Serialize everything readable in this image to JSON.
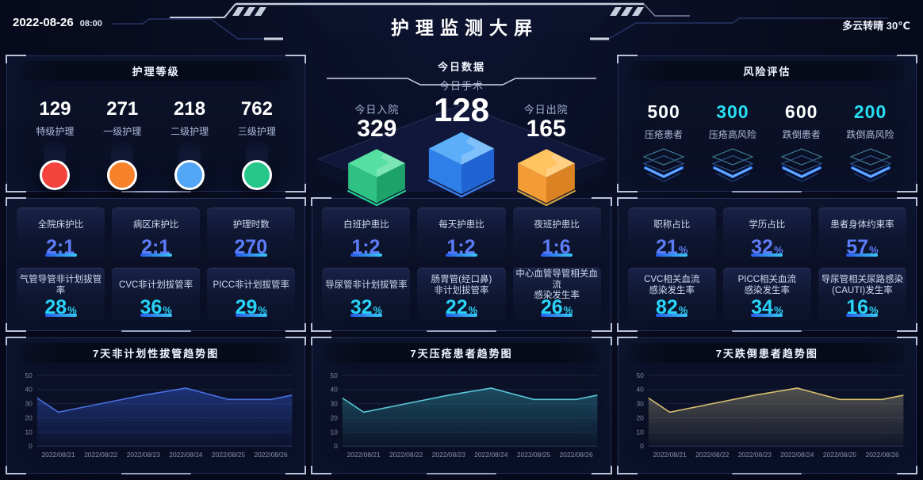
{
  "header": {
    "date": "2022-08-26",
    "time": "08:00",
    "title": "护理监测大屏",
    "weather": "多云转晴 30℃"
  },
  "colors": {
    "value_blue": "#5d7df8",
    "value_cyan": "#29d3f7",
    "risk_white": "#ffffff",
    "risk_cyan": "#27dff2"
  },
  "nursing_level": {
    "title": "护理等级",
    "items": [
      {
        "value": "129",
        "label": "特级护理",
        "color": "#f4433c"
      },
      {
        "value": "271",
        "label": "一级护理",
        "color": "#f6832b"
      },
      {
        "value": "218",
        "label": "二级护理",
        "color": "#53a6f6"
      },
      {
        "value": "762",
        "label": "三级护理",
        "color": "#27c78c"
      }
    ]
  },
  "today_data": {
    "title": "今日数据",
    "items": [
      {
        "label": "今日入院",
        "value": "329",
        "box_color": "green"
      },
      {
        "label": "今日手术",
        "value": "128",
        "box_color": "blue"
      },
      {
        "label": "今日出院",
        "value": "165",
        "box_color": "orange"
      }
    ]
  },
  "risk_assessment": {
    "title": "风险评估",
    "items": [
      {
        "value": "500",
        "label": "压疮患者",
        "value_color": "#ffffff"
      },
      {
        "value": "300",
        "label": "压疮高风险",
        "value_color": "#27dff2"
      },
      {
        "value": "600",
        "label": "跌倒患者",
        "value_color": "#ffffff"
      },
      {
        "value": "200",
        "label": "跌倒高风险",
        "value_color": "#27dff2"
      }
    ]
  },
  "stat_panels": [
    {
      "cards": [
        {
          "label": "全院床护比",
          "label2": "",
          "value": "2:1",
          "unit": "",
          "tone": "blue"
        },
        {
          "label": "病区床护比",
          "label2": "",
          "value": "2:1",
          "unit": "",
          "tone": "blue"
        },
        {
          "label": "护理时数",
          "label2": "",
          "value": "270",
          "unit": "",
          "tone": "blue"
        },
        {
          "label": "气管导管非计划拔管率",
          "label2": "",
          "value": "28",
          "unit": "%",
          "tone": "cyan"
        },
        {
          "label": "CVC非计划拔管率",
          "label2": "",
          "value": "36",
          "unit": "%",
          "tone": "cyan"
        },
        {
          "label": "PICC非计划拔管率",
          "label2": "",
          "value": "29",
          "unit": "%",
          "tone": "cyan"
        }
      ]
    },
    {
      "cards": [
        {
          "label": "白班护患比",
          "label2": "",
          "value": "1:2",
          "unit": "",
          "tone": "blue"
        },
        {
          "label": "每天护患比",
          "label2": "",
          "value": "1:2",
          "unit": "",
          "tone": "blue"
        },
        {
          "label": "夜班护患比",
          "label2": "",
          "value": "1:6",
          "unit": "",
          "tone": "blue"
        },
        {
          "label": "导尿管非计划拔管率",
          "label2": "",
          "value": "32",
          "unit": "%",
          "tone": "cyan"
        },
        {
          "label": "肠胃管(经口鼻)",
          "label2": "非计划拔管率",
          "value": "22",
          "unit": "%",
          "tone": "cyan"
        },
        {
          "label": "中心血管导管相关血流",
          "label2": "感染发生率",
          "value": "26",
          "unit": "%",
          "tone": "cyan"
        }
      ]
    },
    {
      "cards": [
        {
          "label": "职称占比",
          "label2": "",
          "value": "21",
          "unit": "%",
          "tone": "blue"
        },
        {
          "label": "学历占比",
          "label2": "",
          "value": "32",
          "unit": "%",
          "tone": "blue"
        },
        {
          "label": "患者身体约束率",
          "label2": "",
          "value": "57",
          "unit": "%",
          "tone": "blue"
        },
        {
          "label": "CVC相关血流",
          "label2": "感染发生率",
          "value": "82",
          "unit": "%",
          "tone": "cyan"
        },
        {
          "label": "PICC相关血流",
          "label2": "感染发生率",
          "value": "34",
          "unit": "%",
          "tone": "cyan"
        },
        {
          "label": "导尿管相关尿路感染",
          "label2": "(CAUTI)发生率",
          "value": "16",
          "unit": "%",
          "tone": "cyan"
        }
      ]
    }
  ],
  "chart_data": [
    {
      "type": "area",
      "title": "7天非计划性拔管趋势图",
      "x": [
        "2022/08/21",
        "2022/08/22",
        "2022/08/23",
        "2022/08/24",
        "2022/08/25",
        "2022/08/26"
      ],
      "values": [
        24,
        30,
        36,
        41,
        33,
        33
      ],
      "edge_values": [
        34,
        36
      ],
      "ylim": [
        0,
        50
      ],
      "yticks": [
        0,
        10,
        20,
        30,
        40,
        50
      ],
      "xlabel": "",
      "ylabel": "",
      "grid": true,
      "legend": "none",
      "line_color": "#4a6fe0",
      "area_color": "#2b4fb8"
    },
    {
      "type": "area",
      "title": "7天压疮患者趋势图",
      "x": [
        "2022/08/21",
        "2022/08/22",
        "2022/08/23",
        "2022/08/24",
        "2022/08/25",
        "2022/08/26"
      ],
      "values": [
        24,
        30,
        36,
        41,
        33,
        33
      ],
      "edge_values": [
        34,
        36
      ],
      "ylim": [
        0,
        50
      ],
      "yticks": [
        0,
        10,
        20,
        30,
        40,
        50
      ],
      "xlabel": "",
      "ylabel": "",
      "grid": true,
      "legend": "none",
      "line_color": "#58c6d6",
      "area_color": "#2a7d8f"
    },
    {
      "type": "area",
      "title": "7天跌倒患者趋势图",
      "x": [
        "2022/08/21",
        "2022/08/22",
        "2022/08/23",
        "2022/08/24",
        "2022/08/25",
        "2022/08/26"
      ],
      "values": [
        24,
        30,
        36,
        41,
        33,
        33
      ],
      "edge_values": [
        34,
        36
      ],
      "ylim": [
        0,
        50
      ],
      "yticks": [
        0,
        10,
        20,
        30,
        40,
        50
      ],
      "xlabel": "",
      "ylabel": "",
      "grid": true,
      "legend": "none",
      "line_color": "#d6bf6e",
      "area_color": "#8a8570"
    }
  ]
}
